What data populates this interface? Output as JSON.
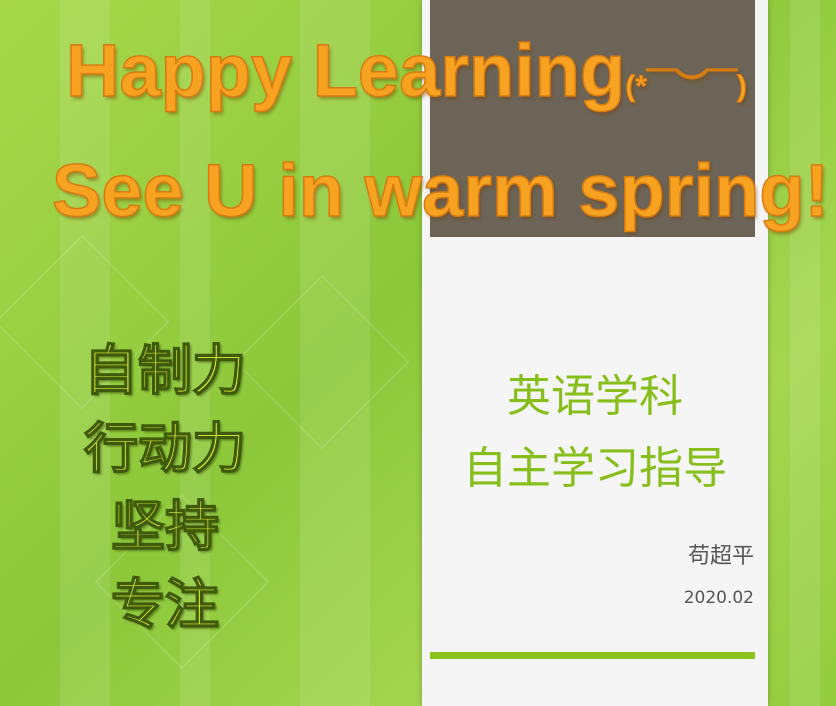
{
  "title": {
    "line1": "Happy Learning",
    "emoticon": "(*￣︶￣)",
    "line2": "See U in warm spring!"
  },
  "qualities": [
    "自制力",
    "行动力",
    "坚持",
    "专注"
  ],
  "card": {
    "subject": "英语学科",
    "heading": "自主学习指导",
    "author": "苟超平",
    "date": "2020.02"
  }
}
